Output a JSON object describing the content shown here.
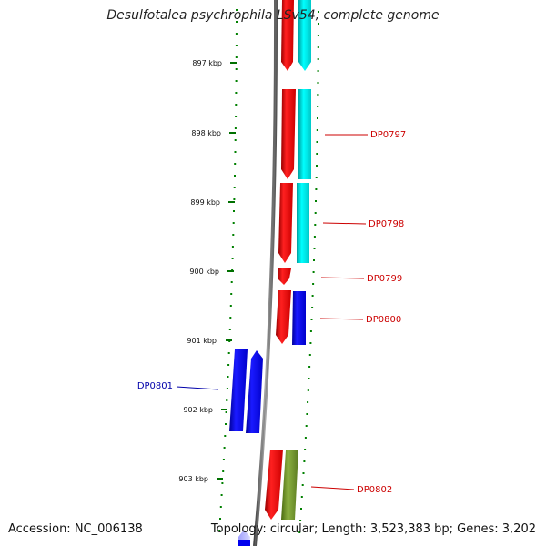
{
  "title": "Desulfotalea psychrophila LSv54, complete genome",
  "footer": {
    "accession": "Accession: NC_006138",
    "summary": "Topology: circular; Length: 3,523,383 bp; Genes: 3,202"
  },
  "ticks": [
    "897 kbp",
    "898 kbp",
    "899 kbp",
    "900 kbp",
    "901 kbp",
    "902 kbp",
    "903 kbp"
  ],
  "gene_labels": [
    {
      "text": "DP0797",
      "strand": "plus"
    },
    {
      "text": "DP0798",
      "strand": "plus"
    },
    {
      "text": "DP0799",
      "strand": "plus"
    },
    {
      "text": "DP0800",
      "strand": "plus"
    },
    {
      "text": "DP0801",
      "strand": "minus"
    },
    {
      "text": "DP0802",
      "strand": "plus"
    }
  ],
  "colors": {
    "plus_cds": "#ff0000",
    "plus_feature": "#00e5e5",
    "minus_cds": "#0000ee",
    "olive_feature": "#6b8e23",
    "backbone": "#888888",
    "gc_dots": "#008000",
    "plus_label": "#cc0000",
    "minus_label": "#0000aa"
  }
}
